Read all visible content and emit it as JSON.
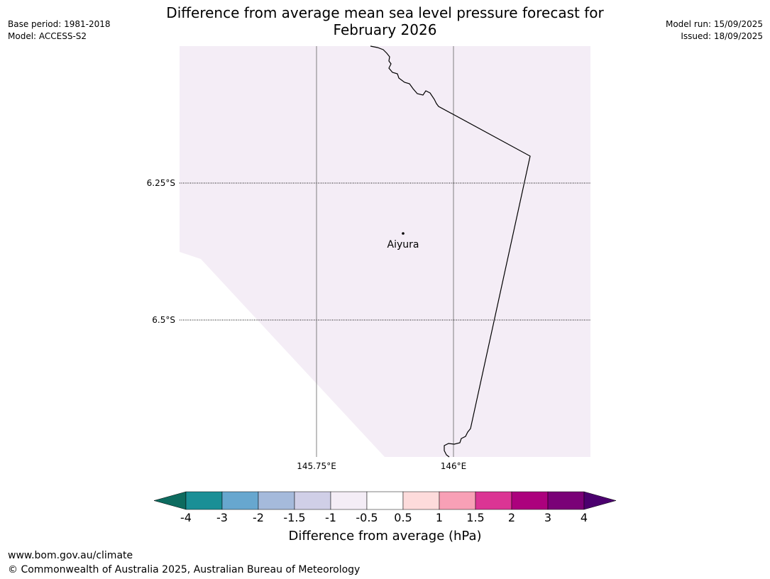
{
  "header": {
    "title_line1": "Difference from average mean sea level pressure forecast for",
    "title_line2": "February 2026",
    "base_period": "Base period: 1981-2018",
    "model": "Model: ACCESS-S2",
    "model_run": "Model run: 15/09/2025",
    "issued": "Issued: 18/09/2025"
  },
  "map": {
    "fill_color": "#f4edf6",
    "latitudes": [
      {
        "label": "6.25°S",
        "value": -6.25
      },
      {
        "label": "6.5°S",
        "value": -6.5
      }
    ],
    "longitudes": [
      {
        "label": "145.75°E",
        "value": 145.75
      },
      {
        "label": "146°E",
        "value": 146.0
      }
    ],
    "place": {
      "name": "Aiyura",
      "lon": 145.9,
      "lat": -6.34
    }
  },
  "colorbar": {
    "ticks": [
      "-4",
      "-3",
      "-2",
      "-1.5",
      "-1",
      "-0.5",
      "0.5",
      "1",
      "1.5",
      "2",
      "3",
      "4"
    ],
    "colors": [
      "#1a8f96",
      "#67a7cf",
      "#a5badb",
      "#d0cfe7",
      "#f4edf6",
      "#ffffff",
      "#fddbdb",
      "#f8a0b6",
      "#db3594",
      "#ac017d",
      "#7a0177"
    ],
    "under_color": "#0d6b5f",
    "over_color": "#4b006e",
    "label": "Difference from average (hPa)"
  },
  "footer": {
    "url": "www.bom.gov.au/climate",
    "copyright": "© Commonwealth of Australia 2025, Australian Bureau of Meteorology"
  }
}
